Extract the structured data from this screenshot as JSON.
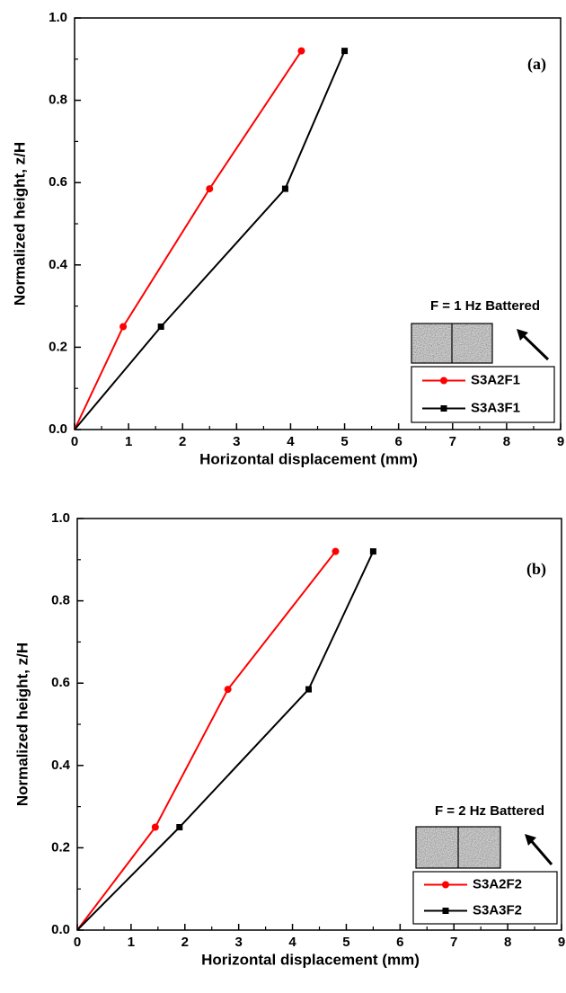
{
  "chart_data": [
    {
      "type": "line",
      "panel_label": "(a)",
      "annotation": "F = 1 Hz Battered",
      "xlabel": "Horizontal displacement (mm)",
      "ylabel": "Normalized height, z/H",
      "xlim": [
        0,
        9
      ],
      "ylim": [
        0,
        1
      ],
      "xticks": [
        0,
        1,
        2,
        3,
        4,
        5,
        6,
        7,
        8,
        9
      ],
      "yticks": [
        {
          "value": 0,
          "label": "0.0"
        },
        0.2,
        0.4,
        0.6,
        0.8,
        {
          "value": 1,
          "label": "1.0"
        }
      ],
      "series": [
        {
          "name": "S3A2F1",
          "color": "#ff0000",
          "marker": "circle",
          "x": [
            0,
            0.9,
            2.5,
            4.2
          ],
          "values": [
            0,
            0.25,
            0.585,
            0.92
          ]
        },
        {
          "name": "S3A3F1",
          "color": "#000000",
          "marker": "square",
          "x": [
            0,
            1.6,
            3.9,
            5.0
          ],
          "values": [
            0,
            0.25,
            0.585,
            0.92
          ]
        }
      ]
    },
    {
      "type": "line",
      "panel_label": "(b)",
      "annotation": "F = 2 Hz Battered",
      "xlabel": "Horizontal displacement (mm)",
      "ylabel": "Normalized height, z/H",
      "xlim": [
        0,
        9
      ],
      "ylim": [
        0,
        1
      ],
      "xticks": [
        0,
        1,
        2,
        3,
        4,
        5,
        6,
        7,
        8,
        9
      ],
      "yticks": [
        {
          "value": 0,
          "label": "0.0"
        },
        0.2,
        0.4,
        0.6,
        0.8,
        {
          "value": 1,
          "label": "1.0"
        }
      ],
      "series": [
        {
          "name": "S3A2F2",
          "color": "#ff0000",
          "marker": "circle",
          "x": [
            0,
            1.45,
            2.8,
            4.8
          ],
          "values": [
            0,
            0.25,
            0.585,
            0.92
          ]
        },
        {
          "name": "S3A3F2",
          "color": "#000000",
          "marker": "square",
          "x": [
            0,
            1.9,
            4.3,
            5.5
          ],
          "values": [
            0,
            0.25,
            0.585,
            0.92
          ]
        }
      ]
    }
  ]
}
